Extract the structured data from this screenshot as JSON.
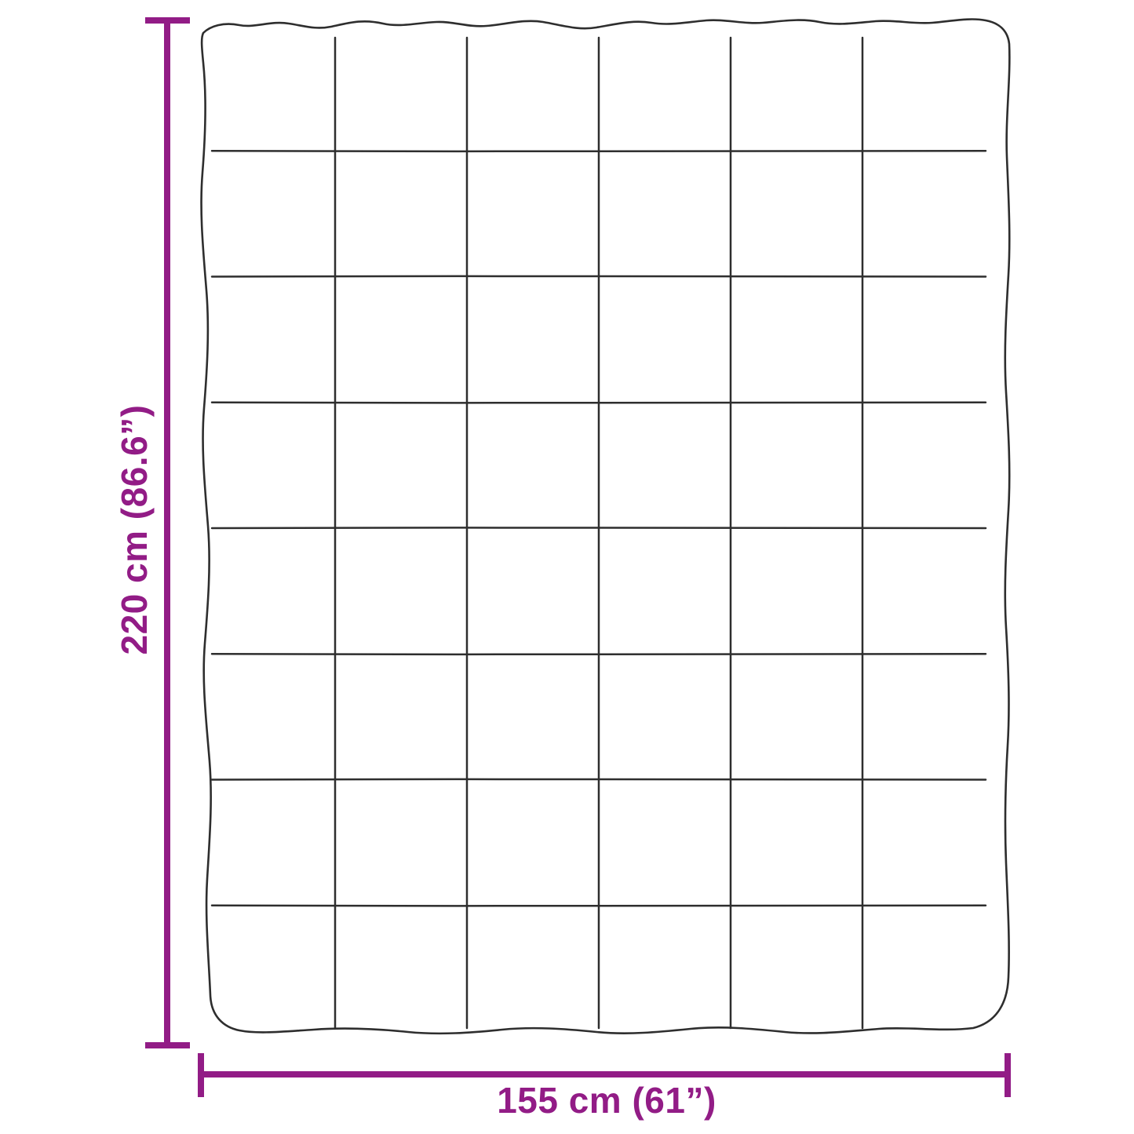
{
  "diagram": {
    "kind": "blanket-dimension-diagram",
    "height_dimension": {
      "label": "220 cm (86.6”)"
    },
    "width_dimension": {
      "label": "155 cm (61”)"
    },
    "blanket_grid": {
      "columns": 6,
      "rows": 8
    }
  },
  "colors": {
    "dimension_accent": "#921c86",
    "outline": "#2e2e2e",
    "background": "#ffffff"
  }
}
